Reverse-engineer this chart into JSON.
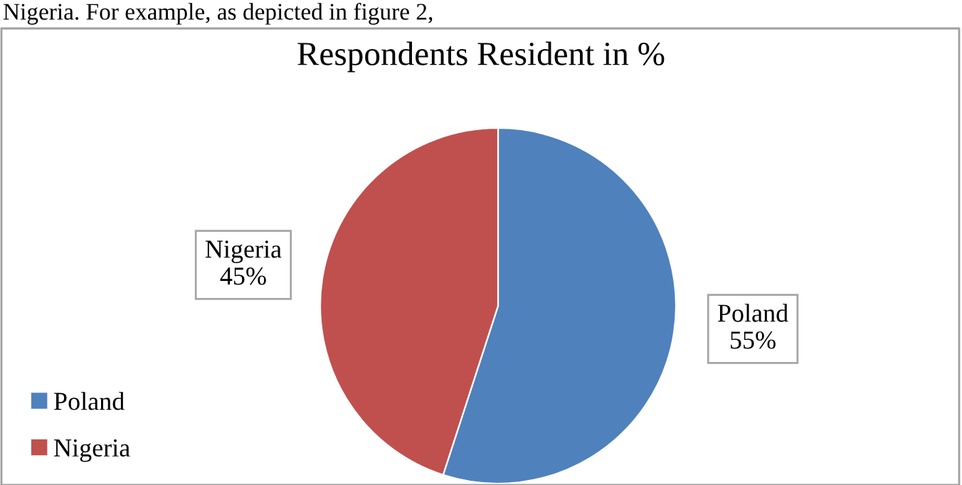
{
  "chart_data": {
    "type": "pie",
    "title": "Respondents Resident in %",
    "annotations": [
      "Nigeria. For example, as depicted in figure 2,"
    ],
    "categories": [
      "Poland",
      "Nigeria"
    ],
    "values": [
      55,
      45
    ],
    "colors": [
      "#4f81bd",
      "#c0504d"
    ],
    "value_labels": [
      "55%",
      "45%"
    ],
    "legend": "bottom left"
  }
}
